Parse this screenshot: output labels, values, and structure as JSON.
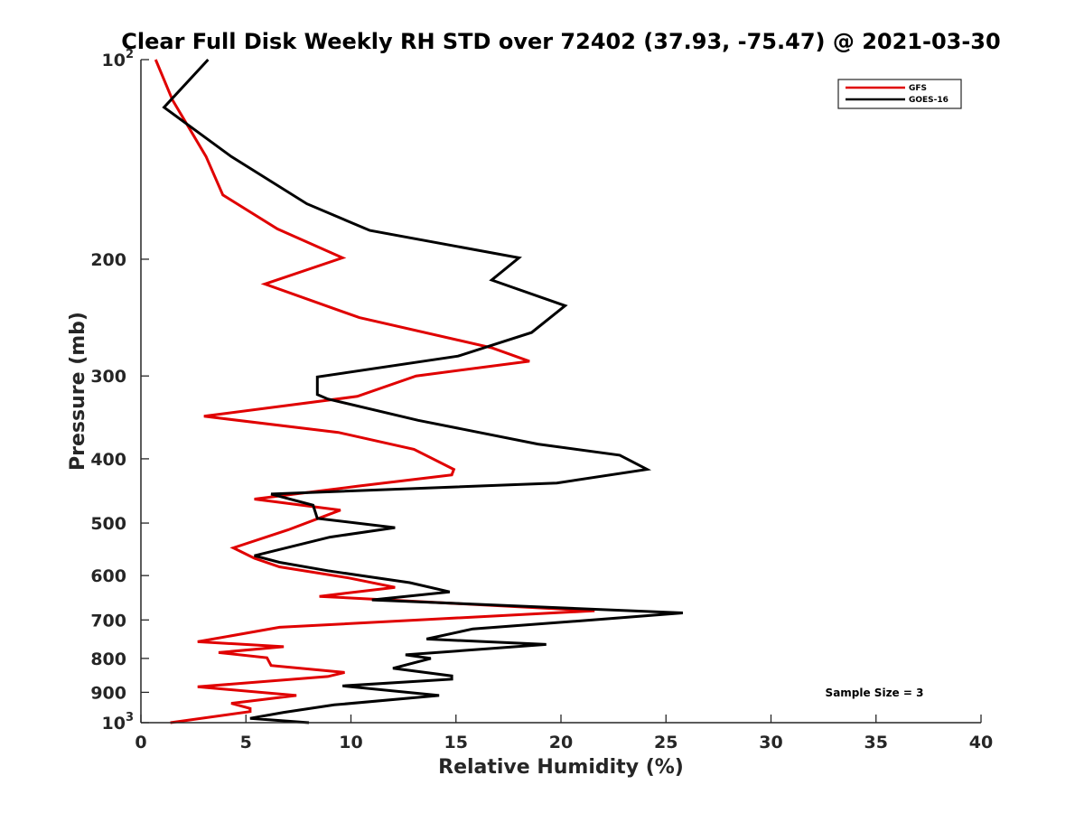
{
  "chart_data": {
    "type": "line",
    "title": "Clear Full Disk Weekly RH STD over 72402 (37.93, -75.47) @ 2021-03-30",
    "xlabel": "Relative Humidity (%)",
    "ylabel": "Pressure (mb)",
    "xlim": [
      0,
      40
    ],
    "ylim": [
      100,
      1000
    ],
    "y_scale": "log",
    "y_reversed": true,
    "x_ticks": [
      0,
      5,
      10,
      15,
      20,
      25,
      30,
      35,
      40
    ],
    "x_tick_labels": [
      "0",
      "5",
      "10",
      "15",
      "20",
      "25",
      "30",
      "35",
      "40"
    ],
    "y_ticks": [
      {
        "value": 100,
        "base": "10",
        "exp": "2"
      },
      {
        "value": 200,
        "label": "200"
      },
      {
        "value": 300,
        "label": "300"
      },
      {
        "value": 400,
        "label": "400"
      },
      {
        "value": 500,
        "label": "500"
      },
      {
        "value": 600,
        "label": "600"
      },
      {
        "value": 700,
        "label": "700"
      },
      {
        "value": 800,
        "label": "800"
      },
      {
        "value": 900,
        "label": "900"
      },
      {
        "value": 1000,
        "base": "10",
        "exp": "3"
      }
    ],
    "legend": {
      "location": "top-right"
    },
    "annotation": "Sample Size = 3",
    "series": [
      {
        "name": "GFS",
        "color": "#e00000",
        "points": [
          [
            0.7,
            100
          ],
          [
            1.5,
            115
          ],
          [
            3.1,
            140
          ],
          [
            3.9,
            160
          ],
          [
            6.5,
            180
          ],
          [
            9.6,
            199
          ],
          [
            5.9,
            218
          ],
          [
            10.4,
            245
          ],
          [
            16.7,
            272
          ],
          [
            18.5,
            285
          ],
          [
            13.1,
            300
          ],
          [
            10.3,
            322
          ],
          [
            3.0,
            345
          ],
          [
            9.4,
            365
          ],
          [
            13.0,
            387
          ],
          [
            14.9,
            415
          ],
          [
            14.8,
            423
          ],
          [
            10.3,
            440
          ],
          [
            5.4,
            460
          ],
          [
            9.5,
            478
          ],
          [
            7.0,
            512
          ],
          [
            4.4,
            545
          ],
          [
            5.4,
            565
          ],
          [
            6.6,
            582
          ],
          [
            9.9,
            605
          ],
          [
            12.1,
            625
          ],
          [
            8.5,
            645
          ],
          [
            21.6,
            678
          ],
          [
            6.6,
            718
          ],
          [
            2.7,
            755
          ],
          [
            6.8,
            768
          ],
          [
            3.7,
            784
          ],
          [
            6.0,
            798
          ],
          [
            6.2,
            820
          ],
          [
            9.7,
            840
          ],
          [
            8.9,
            852
          ],
          [
            2.7,
            883
          ],
          [
            7.4,
            910
          ],
          [
            4.3,
            935
          ],
          [
            5.2,
            952
          ],
          [
            5.2,
            962
          ],
          [
            1.4,
            1000
          ]
        ]
      },
      {
        "name": "GOES-16",
        "color": "#000000",
        "points": [
          [
            3.2,
            100
          ],
          [
            1.1,
            118
          ],
          [
            4.3,
            140
          ],
          [
            7.9,
            165
          ],
          [
            10.9,
            181
          ],
          [
            18.0,
            199
          ],
          [
            16.7,
            215
          ],
          [
            20.2,
            235
          ],
          [
            18.6,
            258
          ],
          [
            15.1,
            280
          ],
          [
            8.4,
            301
          ],
          [
            8.4,
            320
          ],
          [
            8.9,
            325
          ],
          [
            13.2,
            350
          ],
          [
            18.9,
            380
          ],
          [
            22.8,
            395
          ],
          [
            24.1,
            415
          ],
          [
            19.8,
            435
          ],
          [
            6.2,
            452
          ],
          [
            8.2,
            470
          ],
          [
            8.4,
            492
          ],
          [
            12.1,
            508
          ],
          [
            9.0,
            525
          ],
          [
            5.4,
            560
          ],
          [
            6.6,
            573
          ],
          [
            8.9,
            590
          ],
          [
            12.8,
            615
          ],
          [
            14.7,
            635
          ],
          [
            11.0,
            653
          ],
          [
            25.8,
            683
          ],
          [
            22.0,
            698
          ],
          [
            15.8,
            722
          ],
          [
            13.6,
            748
          ],
          [
            19.3,
            762
          ],
          [
            12.6,
            790
          ],
          [
            13.8,
            800
          ],
          [
            12.0,
            828
          ],
          [
            14.8,
            850
          ],
          [
            14.8,
            860
          ],
          [
            9.6,
            880
          ],
          [
            14.2,
            910
          ],
          [
            9.2,
            940
          ],
          [
            6.8,
            965
          ],
          [
            5.2,
            985
          ],
          [
            8.0,
            1000
          ]
        ]
      }
    ]
  }
}
